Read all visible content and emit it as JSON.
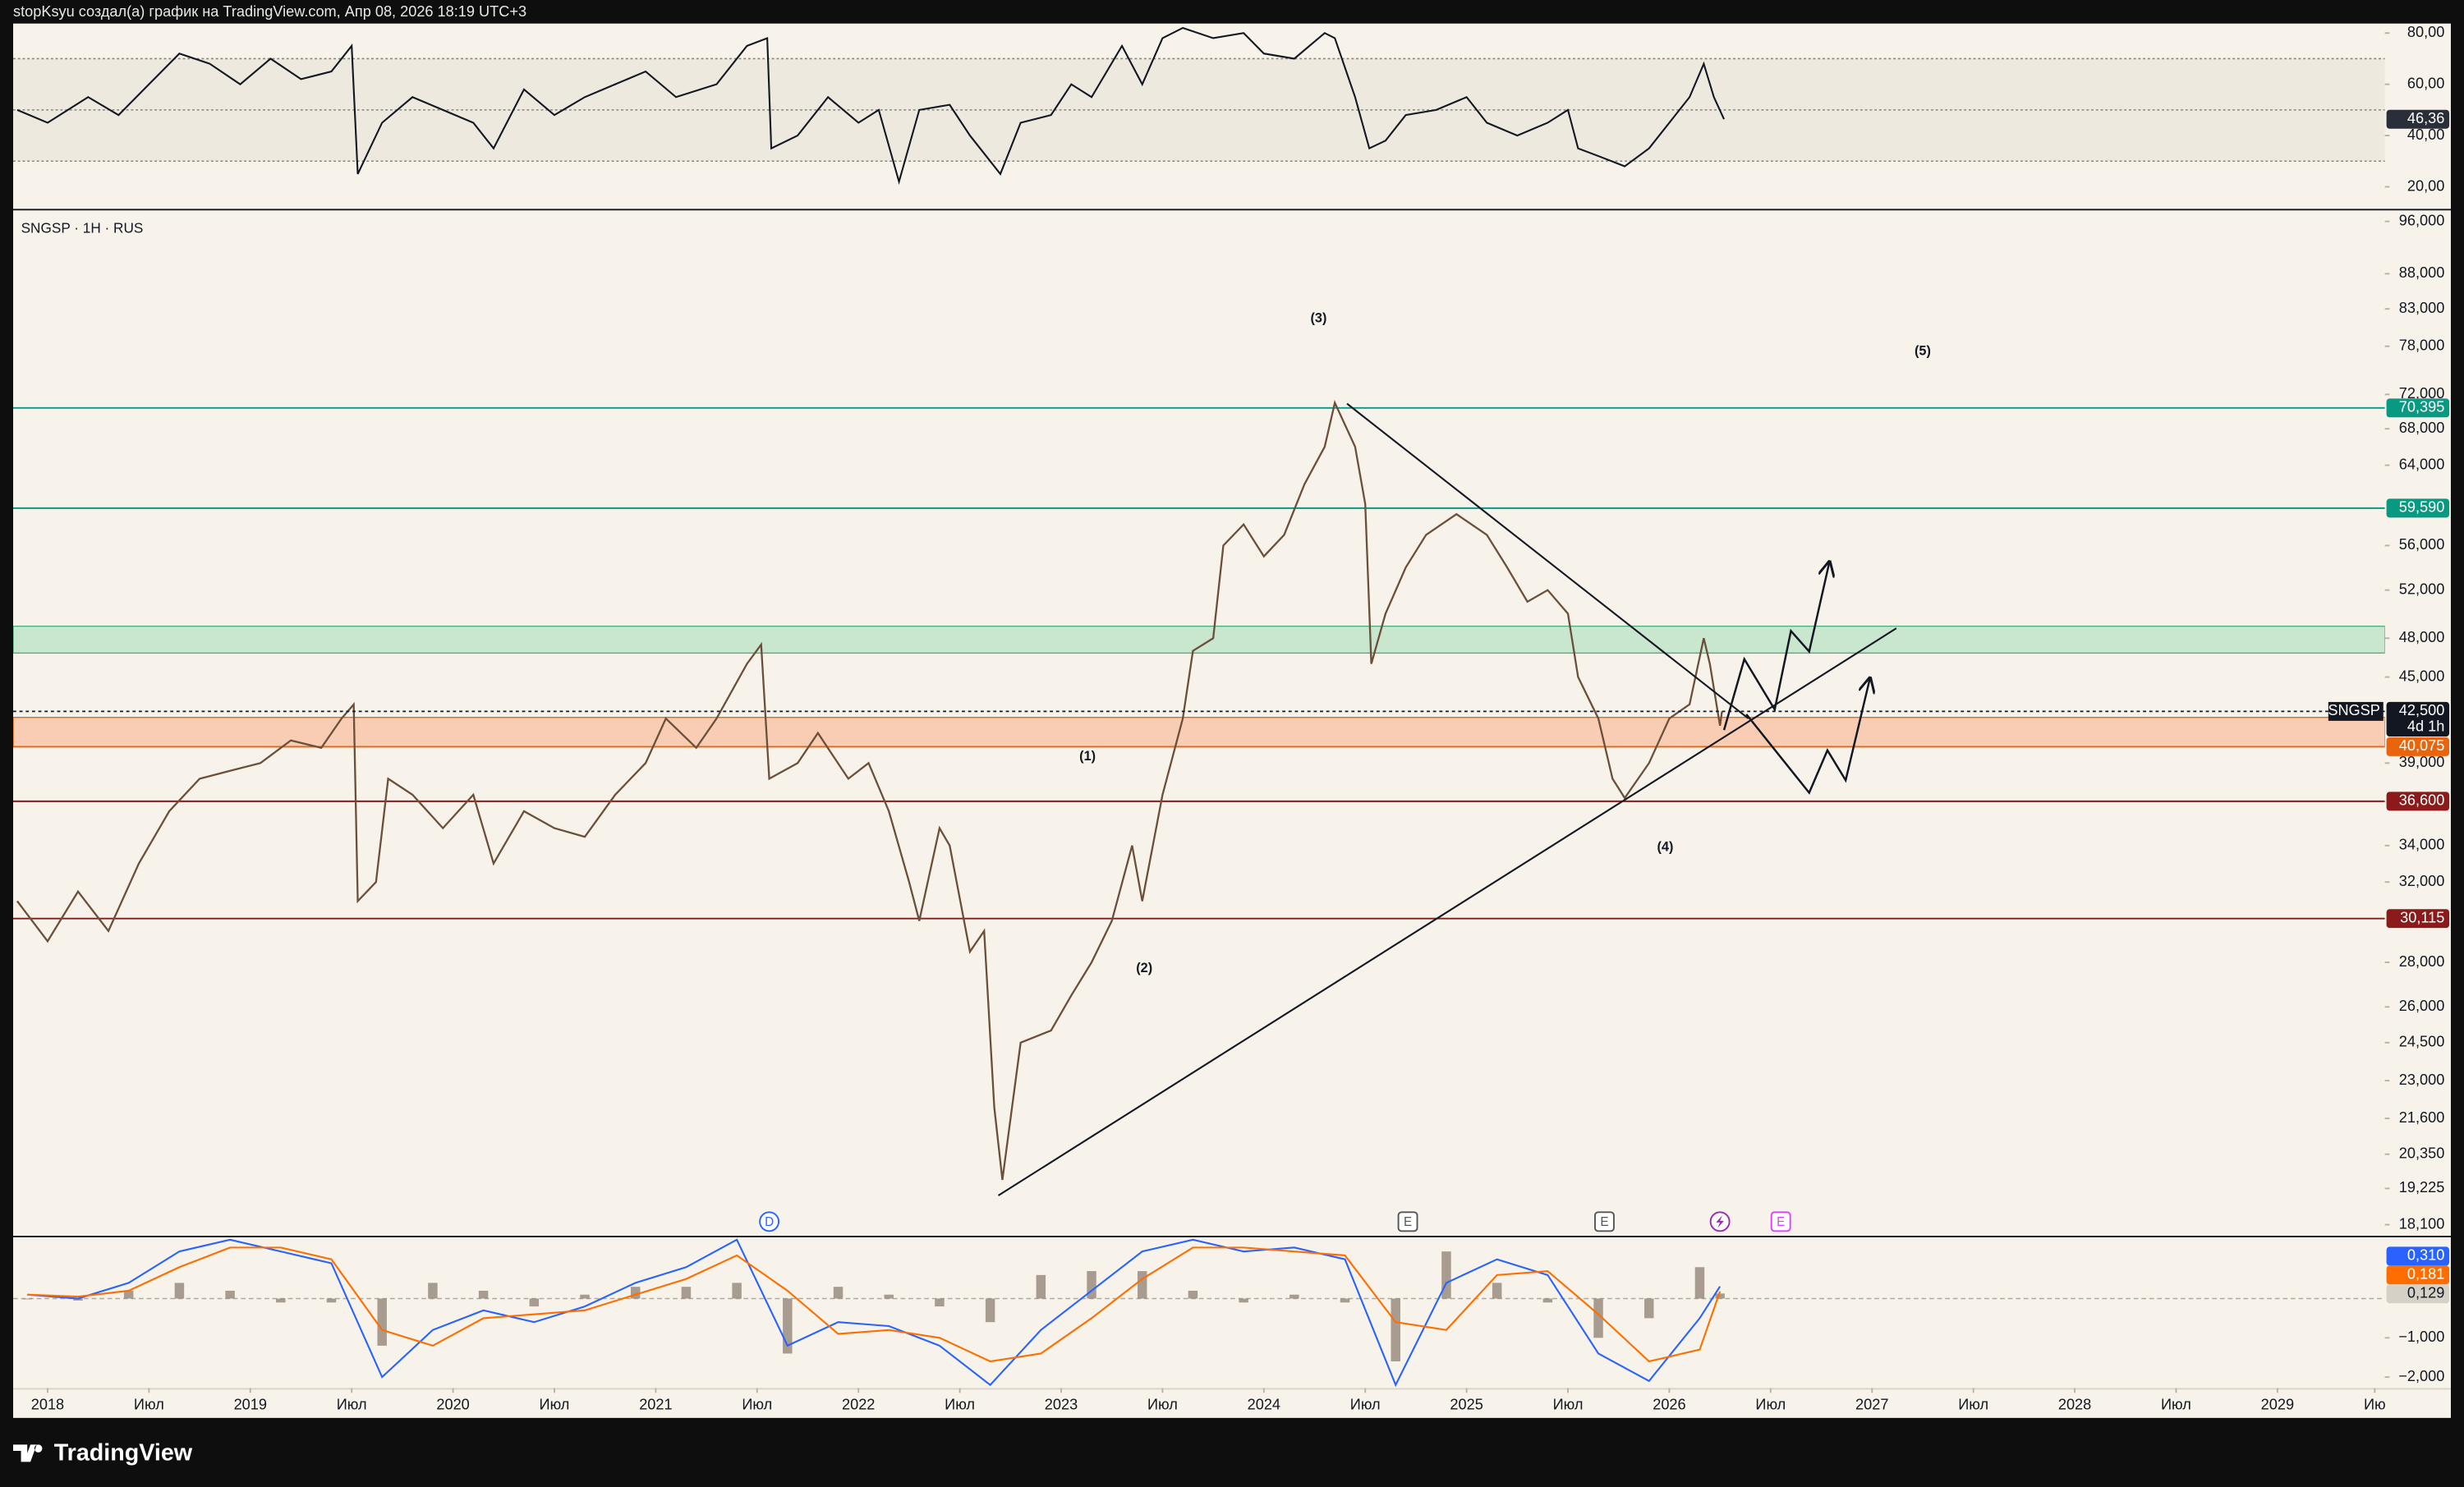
{
  "header": {
    "text": "stopKsyu создал(а) график на TradingView.com, Апр 08, 2026 18:19 UTC+3"
  },
  "time_axis": {
    "xlim": [
      2017.83,
      2029.53
    ],
    "xticks": [
      2018,
      {
        "value": 2018.5,
        "label": "Июл"
      },
      2019,
      {
        "value": 2019.5,
        "label": "Июл"
      },
      2020,
      {
        "value": 2020.5,
        "label": "Июл"
      },
      2021,
      {
        "value": 2021.5,
        "label": "Июл"
      },
      2022,
      {
        "value": 2022.5,
        "label": "Июл"
      },
      2023,
      {
        "value": 2023.5,
        "label": "Июл"
      },
      2024,
      {
        "value": 2024.5,
        "label": "Июл"
      },
      2025,
      {
        "value": 2025.5,
        "label": "Июл"
      },
      2026,
      {
        "value": 2026.5,
        "label": "Июл"
      },
      2027,
      {
        "value": 2027.5,
        "label": "Июл"
      },
      2028,
      {
        "value": 2028.5,
        "label": "Июл"
      },
      2029,
      {
        "value": 2029.48,
        "label": "Ию"
      }
    ]
  },
  "rsi": {
    "type": "line",
    "color": "#131722",
    "ylim": [
      11.4,
      83.7
    ],
    "yticks": [
      {
        "value": 80,
        "label": "80,00"
      },
      {
        "value": 60,
        "label": "60,00"
      },
      {
        "value": 40,
        "label": "40,00"
      },
      {
        "value": 20,
        "label": "20,00"
      }
    ],
    "levels": [
      70,
      50,
      30
    ],
    "band": [
      30,
      70
    ],
    "x": [
      2017.85,
      2018.0,
      2018.2,
      2018.35,
      2018.5,
      2018.65,
      2018.8,
      2018.95,
      2019.1,
      2019.25,
      2019.4,
      2019.5,
      2019.53,
      2019.65,
      2019.8,
      2019.95,
      2020.1,
      2020.2,
      2020.35,
      2020.5,
      2020.65,
      2020.8,
      2020.95,
      2021.1,
      2021.3,
      2021.45,
      2021.55,
      2021.57,
      2021.7,
      2021.85,
      2022.0,
      2022.1,
      2022.2,
      2022.3,
      2022.45,
      2022.55,
      2022.7,
      2022.8,
      2022.95,
      2023.05,
      2023.15,
      2023.3,
      2023.4,
      2023.5,
      2023.6,
      2023.75,
      2023.9,
      2024.0,
      2024.15,
      2024.3,
      2024.35,
      2024.45,
      2024.52,
      2024.6,
      2024.7,
      2024.85,
      2025.0,
      2025.1,
      2025.25,
      2025.4,
      2025.5,
      2025.55,
      2025.65,
      2025.78,
      2025.9,
      2026.0,
      2026.1,
      2026.17,
      2026.22,
      2026.27
    ],
    "values": [
      50,
      45,
      55,
      48,
      60,
      72,
      68,
      60,
      70,
      62,
      65,
      75,
      25,
      45,
      55,
      50,
      45,
      35,
      58,
      48,
      55,
      60,
      65,
      55,
      60,
      75,
      78,
      35,
      40,
      55,
      45,
      50,
      22,
      50,
      52,
      40,
      25,
      45,
      48,
      60,
      55,
      75,
      60,
      78,
      82,
      78,
      80,
      72,
      70,
      80,
      78,
      55,
      35,
      38,
      48,
      50,
      55,
      45,
      40,
      45,
      50,
      35,
      32,
      28,
      35,
      45,
      55,
      68,
      55,
      46.36
    ],
    "last_label": "46,36"
  },
  "price": {
    "type": "line",
    "title": "SNGSP · 1H · RUS",
    "log": true,
    "color": "#6b4f3a",
    "ylim": [
      17770,
      97770
    ],
    "yticks": [
      {
        "value": 96000,
        "label": "96,000"
      },
      {
        "value": 88000,
        "label": "88,000"
      },
      {
        "value": 83000,
        "label": "83,000"
      },
      {
        "value": 78000,
        "label": "78,000"
      },
      {
        "value": 72000,
        "label": "72,000"
      },
      {
        "value": 68000,
        "label": "68,000"
      },
      {
        "value": 64000,
        "label": "64,000"
      },
      {
        "value": 56000,
        "label": "56,000"
      },
      {
        "value": 52000,
        "label": "52,000"
      },
      {
        "value": 48000,
        "label": "48,000"
      },
      {
        "value": 45000,
        "label": "45,000"
      },
      {
        "value": 39000,
        "label": "39,000"
      },
      {
        "value": 34000,
        "label": "34,000"
      },
      {
        "value": 32000,
        "label": "32,000"
      },
      {
        "value": 28000,
        "label": "28,000"
      },
      {
        "value": 26000,
        "label": "26,000"
      },
      {
        "value": 24500,
        "label": "24,500"
      },
      {
        "value": 23000,
        "label": "23,000"
      },
      {
        "value": 21600,
        "label": "21,600"
      },
      {
        "value": 20350,
        "label": "20,350"
      },
      {
        "value": 19225,
        "label": "19,225"
      },
      {
        "value": 18100,
        "label": "18,100"
      }
    ],
    "x": [
      2017.85,
      2018.0,
      2018.15,
      2018.3,
      2018.45,
      2018.6,
      2018.75,
      2018.9,
      2019.05,
      2019.2,
      2019.35,
      2019.45,
      2019.51,
      2019.53,
      2019.62,
      2019.68,
      2019.8,
      2019.95,
      2020.1,
      2020.2,
      2020.35,
      2020.5,
      2020.65,
      2020.8,
      2020.95,
      2021.05,
      2021.2,
      2021.3,
      2021.45,
      2021.52,
      2021.56,
      2021.7,
      2021.8,
      2021.95,
      2022.05,
      2022.15,
      2022.25,
      2022.3,
      2022.4,
      2022.45,
      2022.55,
      2022.62,
      2022.67,
      2022.71,
      2022.8,
      2022.95,
      2023.05,
      2023.15,
      2023.25,
      2023.35,
      2023.4,
      2023.5,
      2023.6,
      2023.65,
      2023.75,
      2023.8,
      2023.9,
      2024.0,
      2024.1,
      2024.2,
      2024.3,
      2024.35,
      2024.45,
      2024.5,
      2024.53,
      2024.6,
      2024.7,
      2024.8,
      2024.95,
      2025.1,
      2025.2,
      2025.3,
      2025.4,
      2025.5,
      2025.55,
      2025.65,
      2025.72,
      2025.78,
      2025.9,
      2026.0,
      2026.1,
      2026.17,
      2026.2,
      2026.25,
      2026.26
    ],
    "values": [
      31000,
      29000,
      31500,
      29500,
      33000,
      36000,
      38000,
      38500,
      39000,
      40500,
      40000,
      42000,
      43000,
      31000,
      32000,
      38000,
      37000,
      35000,
      37000,
      33000,
      36000,
      35000,
      34500,
      37000,
      39000,
      42000,
      40000,
      42000,
      46000,
      47500,
      38000,
      39000,
      41000,
      38000,
      39000,
      36000,
      32000,
      30000,
      35000,
      34000,
      28500,
      29500,
      22000,
      19500,
      24500,
      25000,
      26500,
      28000,
      30000,
      34000,
      31000,
      37000,
      42000,
      47000,
      48000,
      56000,
      58000,
      55000,
      57000,
      62000,
      66000,
      71000,
      66000,
      60000,
      46000,
      50000,
      54000,
      57000,
      59000,
      57000,
      54000,
      51000,
      52000,
      50000,
      45000,
      42000,
      38000,
      36800,
      39000,
      42000,
      43000,
      48000,
      46000,
      41500,
      42500
    ],
    "last": {
      "name": "SNGSP",
      "value": 42500,
      "label": "42,500",
      "countdown": "4d 1h"
    },
    "levels": [
      {
        "value": 70395,
        "label": "70,395",
        "color": "#089981"
      },
      {
        "value": 59590,
        "label": "59,590",
        "color": "#089981"
      },
      {
        "value": 40075,
        "label": "40,075",
        "color": "#e8650e"
      },
      {
        "value": 36600,
        "label": "36,600",
        "color": "#8b1a1a"
      },
      {
        "value": 30115,
        "label": "30,115",
        "color": "#8b1a1a"
      }
    ],
    "zones": [
      {
        "from": 46830,
        "to": 48970,
        "color": "#c9e6cf",
        "border": "#4caf7d"
      },
      {
        "from": 40075,
        "to": 42080,
        "color": "#f8cdb4",
        "border": "#e8650e"
      }
    ],
    "trendlines": [
      {
        "x": [
          2022.69,
          2027.12
        ],
        "values": [
          19000,
          48800
        ]
      },
      {
        "x": [
          2024.41,
          2026.39
        ],
        "values": [
          70900,
          42000
        ]
      }
    ],
    "forecast": [
      {
        "x": [
          2026.27,
          2026.37,
          2026.52,
          2026.6,
          2026.69,
          2026.79
        ],
        "values": [
          41200,
          46360,
          42630,
          48580,
          46950,
          54500
        ]
      },
      {
        "x": [
          2026.38,
          2026.69,
          2026.78,
          2026.87,
          2026.99
        ],
        "values": [
          42300,
          37120,
          39840,
          37900,
          44920
        ]
      }
    ],
    "annotations": [
      {
        "text": "(1)",
        "x": 2023.13,
        "y": 39400
      },
      {
        "text": "(2)",
        "x": 2023.41,
        "y": 27700
      },
      {
        "text": "(3)",
        "x": 2024.27,
        "y": 81660
      },
      {
        "text": "(4)",
        "x": 2025.98,
        "y": 33890
      },
      {
        "text": "(5)",
        "x": 2027.25,
        "y": 77300
      }
    ],
    "events": [
      {
        "label": "D",
        "x": 2021.56,
        "shape": "circle",
        "color": "#2962ff"
      },
      {
        "label": "E",
        "x": 2024.71,
        "shape": "square",
        "color": "#555555"
      },
      {
        "label": "E",
        "x": 2025.68,
        "shape": "square",
        "color": "#555555"
      },
      {
        "x": 2026.25,
        "shape": "bolt",
        "color": "#9c27b0"
      },
      {
        "label": "E",
        "x": 2026.55,
        "shape": "square",
        "color": "#e040fb"
      }
    ]
  },
  "macd": {
    "type": "macd",
    "ylim": [
      -2.28,
      1.56
    ],
    "zero": 0,
    "yticks": [
      {
        "value": -1,
        "label": "−1,000"
      },
      {
        "value": -2,
        "label": "−2,000"
      }
    ],
    "x": [
      2017.9,
      2018.15,
      2018.4,
      2018.65,
      2018.9,
      2019.15,
      2019.4,
      2019.65,
      2019.9,
      2020.15,
      2020.4,
      2020.65,
      2020.9,
      2021.15,
      2021.4,
      2021.65,
      2021.9,
      2022.15,
      2022.4,
      2022.65,
      2022.9,
      2023.15,
      2023.4,
      2023.65,
      2023.9,
      2024.15,
      2024.4,
      2024.65,
      2024.9,
      2025.15,
      2025.4,
      2025.65,
      2025.9,
      2026.15,
      2026.25
    ],
    "series": [
      {
        "color": "#2962ff",
        "values": [
          0.1,
          0.0,
          0.4,
          1.2,
          1.5,
          1.2,
          0.9,
          -2.0,
          -0.8,
          -0.3,
          -0.6,
          -0.2,
          0.4,
          0.8,
          1.5,
          -1.2,
          -0.6,
          -0.7,
          -1.2,
          -2.2,
          -0.8,
          0.2,
          1.2,
          1.5,
          1.2,
          1.3,
          1.0,
          -2.2,
          0.4,
          1.0,
          0.6,
          -1.4,
          -2.1,
          -0.5,
          0.31
        ],
        "last_label": "0,310"
      },
      {
        "color": "#ff6d00",
        "values": [
          0.1,
          0.05,
          0.2,
          0.8,
          1.3,
          1.3,
          1.0,
          -0.8,
          -1.2,
          -0.5,
          -0.4,
          -0.3,
          0.1,
          0.5,
          1.1,
          0.2,
          -0.9,
          -0.8,
          -1.0,
          -1.6,
          -1.4,
          -0.5,
          0.5,
          1.3,
          1.3,
          1.2,
          1.1,
          -0.6,
          -0.8,
          0.6,
          0.7,
          -0.4,
          -1.6,
          -1.3,
          0.181
        ],
        "last_label": "0,181"
      }
    ],
    "histogram": {
      "color": "#8c7f70",
      "values": [
        0,
        -0.05,
        0.2,
        0.4,
        0.2,
        -0.1,
        -0.1,
        -1.2,
        0.4,
        0.2,
        -0.2,
        0.1,
        0.3,
        0.3,
        0.4,
        -1.4,
        0.3,
        0.1,
        -0.2,
        -0.6,
        0.6,
        0.7,
        0.7,
        0.2,
        -0.1,
        0.1,
        -0.1,
        -1.6,
        1.2,
        0.4,
        -0.1,
        -1.0,
        -0.5,
        0.8,
        0.129
      ],
      "last_label": "0,129"
    }
  },
  "footer": {
    "logo": "TradingView"
  }
}
